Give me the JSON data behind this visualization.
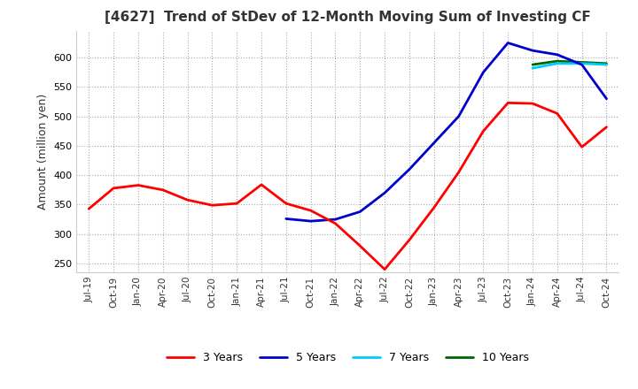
{
  "title": "[4627]  Trend of StDev of 12-Month Moving Sum of Investing CF",
  "ylabel": "Amount (million yen)",
  "ylim": [
    235,
    645
  ],
  "yticks": [
    250,
    300,
    350,
    400,
    450,
    500,
    550,
    600
  ],
  "background_color": "#ffffff",
  "grid_color": "#aaaaaa",
  "series": {
    "3 Years": {
      "color": "#ff0000",
      "dates": [
        "Jul-19",
        "Oct-19",
        "Jan-20",
        "Apr-20",
        "Jul-20",
        "Oct-20",
        "Jan-21",
        "Apr-21",
        "Jul-21",
        "Oct-21",
        "Jan-22",
        "Apr-22",
        "Jul-22",
        "Oct-22",
        "Jan-23",
        "Apr-23",
        "Jul-23",
        "Oct-23",
        "Jan-24",
        "Apr-24",
        "Jul-24",
        "Oct-24"
      ],
      "values": [
        343,
        378,
        383,
        375,
        358,
        349,
        352,
        384,
        352,
        340,
        318,
        280,
        240,
        290,
        345,
        405,
        475,
        523,
        522,
        505,
        448,
        482
      ]
    },
    "5 Years": {
      "color": "#0000cc",
      "dates": [
        "Jul-21",
        "Oct-21",
        "Jan-22",
        "Apr-22",
        "Jul-22",
        "Oct-22",
        "Jan-23",
        "Apr-23",
        "Jul-23",
        "Oct-23",
        "Jan-24",
        "Apr-24",
        "Jul-24",
        "Oct-24"
      ],
      "values": [
        326,
        322,
        325,
        338,
        370,
        410,
        455,
        500,
        575,
        625,
        612,
        605,
        588,
        530
      ]
    },
    "7 Years": {
      "color": "#00ccff",
      "dates": [
        "Jan-24",
        "Apr-24",
        "Jul-24",
        "Oct-24"
      ],
      "values": [
        582,
        590,
        590,
        588
      ]
    },
    "10 Years": {
      "color": "#006600",
      "dates": [
        "Jan-24",
        "Apr-24",
        "Jul-24",
        "Oct-24"
      ],
      "values": [
        588,
        594,
        592,
        590
      ]
    }
  },
  "x_ticklabels": [
    "Jul-19",
    "Oct-19",
    "Jan-20",
    "Apr-20",
    "Jul-20",
    "Oct-20",
    "Jan-21",
    "Apr-21",
    "Jul-21",
    "Oct-21",
    "Jan-22",
    "Apr-22",
    "Jul-22",
    "Oct-22",
    "Jan-23",
    "Apr-23",
    "Jul-23",
    "Oct-23",
    "Jan-24",
    "Apr-24",
    "Jul-24",
    "Oct-24"
  ]
}
